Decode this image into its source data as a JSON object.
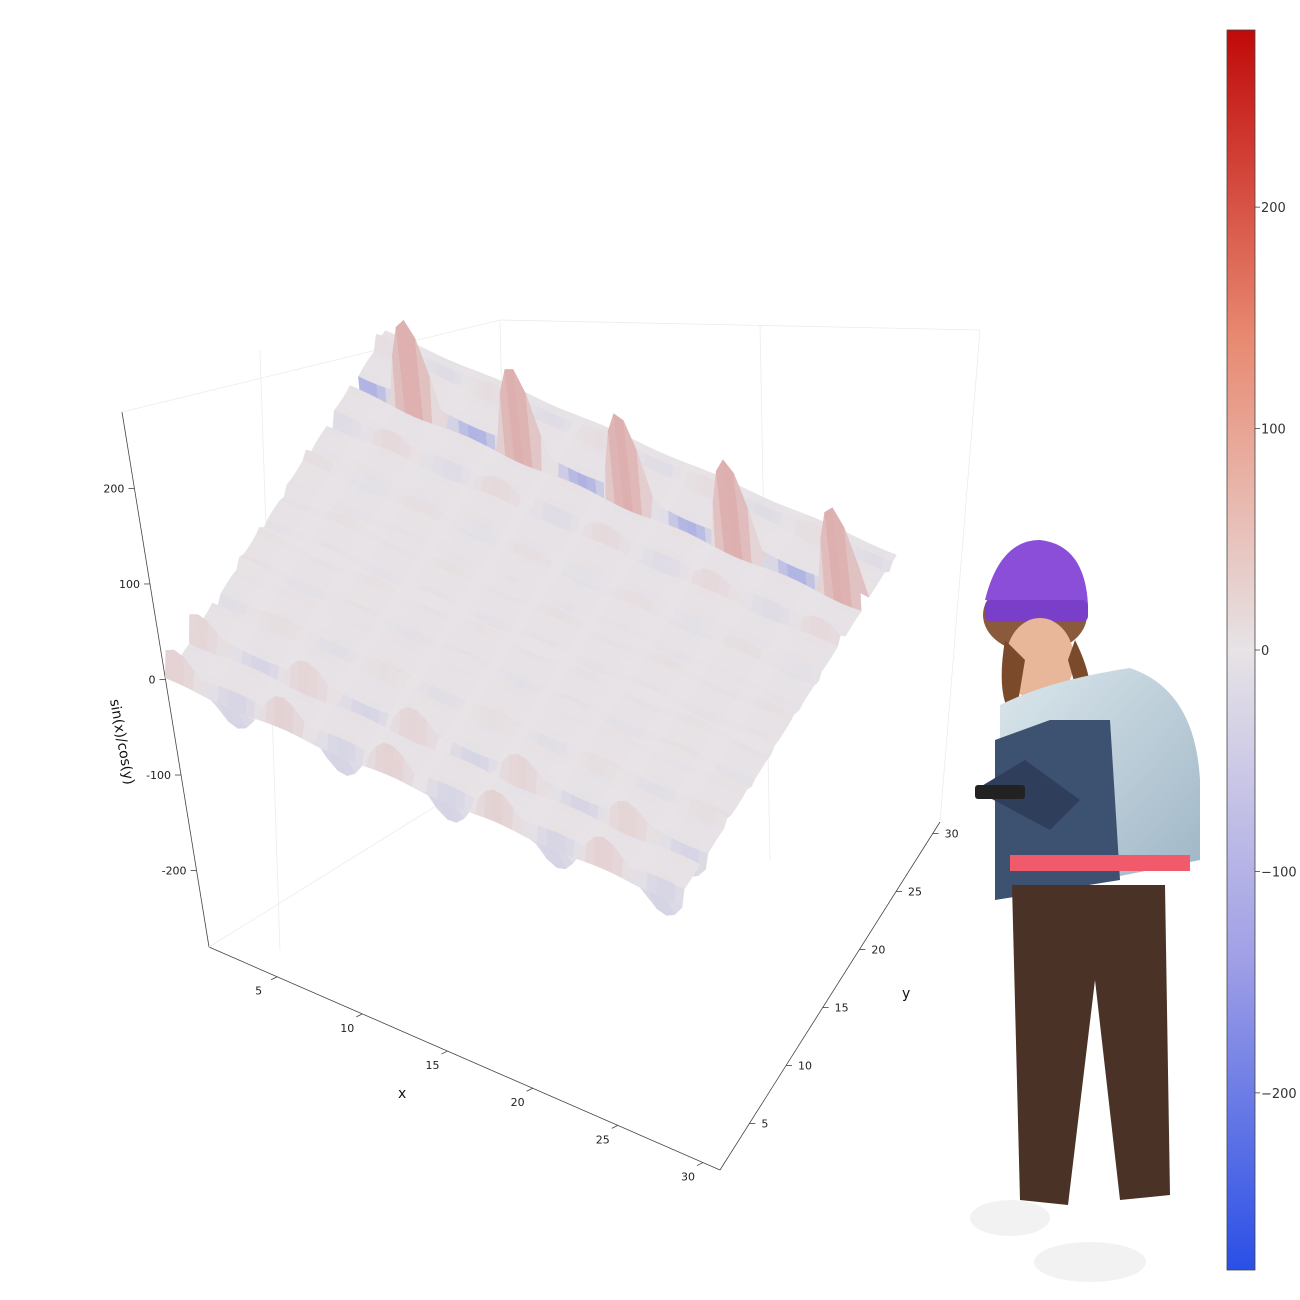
{
  "chart_data": {
    "type": "surface3d",
    "function": "sin(x)/cos(y)",
    "x": {
      "label": "x",
      "range": [
        1,
        31
      ],
      "ticks": [
        5,
        10,
        15,
        20,
        25,
        30
      ]
    },
    "y": {
      "label": "y",
      "range": [
        1,
        31
      ],
      "ticks": [
        5,
        10,
        15,
        20,
        25,
        30
      ]
    },
    "z": {
      "label": "sin(x)/cos(y)",
      "range": [
        -280,
        280
      ],
      "ticks": [
        -200,
        -100,
        0,
        100,
        200
      ]
    },
    "colorbar": {
      "range": [
        -280,
        280
      ],
      "ticks": [
        200,
        100,
        0,
        -100,
        -200
      ],
      "tick_labels": [
        "200",
        "100",
        "0",
        "−100",
        "−200"
      ]
    },
    "colors": {
      "low": "#2a4fe6",
      "mid": "#e7e3e6",
      "high": "#c00a0a"
    },
    "grid": true,
    "legend": "colorbar-right"
  },
  "overlay": {
    "person": "person-standing-with-phone"
  }
}
